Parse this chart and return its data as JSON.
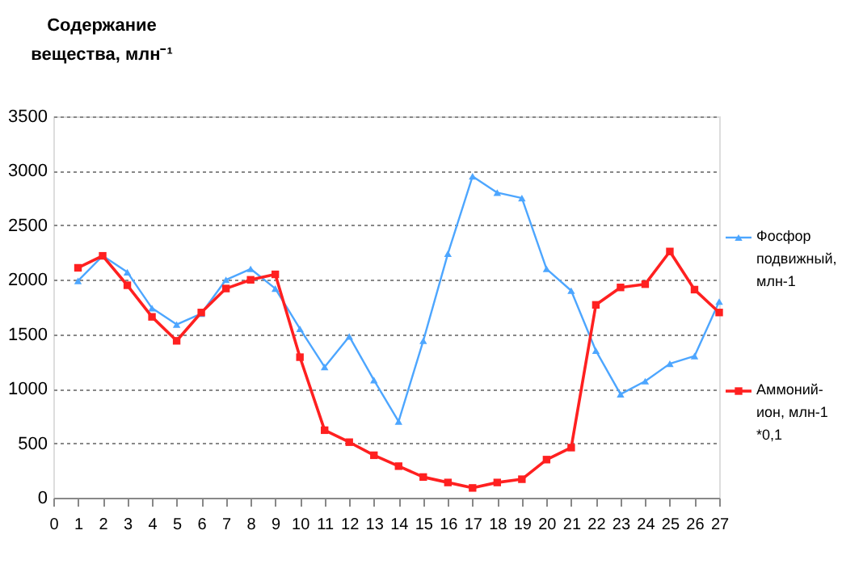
{
  "chart_data": {
    "type": "line",
    "ylabel": "Содержание вещества, млн⁻¹",
    "x": [
      1,
      2,
      3,
      4,
      5,
      6,
      7,
      8,
      9,
      10,
      11,
      12,
      13,
      14,
      15,
      16,
      17,
      18,
      19,
      20,
      21,
      22,
      23,
      24,
      25,
      26,
      27
    ],
    "xlim": [
      0,
      27
    ],
    "xticks": [
      0,
      1,
      2,
      3,
      4,
      5,
      6,
      7,
      8,
      9,
      10,
      11,
      12,
      13,
      14,
      15,
      16,
      17,
      18,
      19,
      20,
      21,
      22,
      23,
      24,
      25,
      26,
      27
    ],
    "ylim": [
      0,
      3500
    ],
    "yticks": [
      0,
      500,
      1000,
      1500,
      2000,
      2500,
      3000,
      3500
    ],
    "grid": "y",
    "legend": "right",
    "series": [
      {
        "name": "Фосфор подвижный, млн-1",
        "color": "#4da6ff",
        "marker": "triangle",
        "values": [
          1990,
          2220,
          2070,
          1740,
          1590,
          1690,
          2000,
          2100,
          1920,
          1550,
          1200,
          1480,
          1080,
          700,
          1440,
          2240,
          2950,
          2800,
          2750,
          2100,
          1900,
          1350,
          950,
          1070,
          1230,
          1300,
          1800
        ]
      },
      {
        "name": "Аммоний-ион, млн-1 *0,1",
        "color": "#ff2020",
        "marker": "square",
        "values": [
          2110,
          2220,
          1950,
          1660,
          1440,
          1700,
          1920,
          2000,
          2050,
          1290,
          620,
          510,
          390,
          290,
          190,
          140,
          90,
          140,
          170,
          350,
          460,
          1770,
          1930,
          1960,
          2260,
          1910,
          1700
        ]
      }
    ]
  }
}
